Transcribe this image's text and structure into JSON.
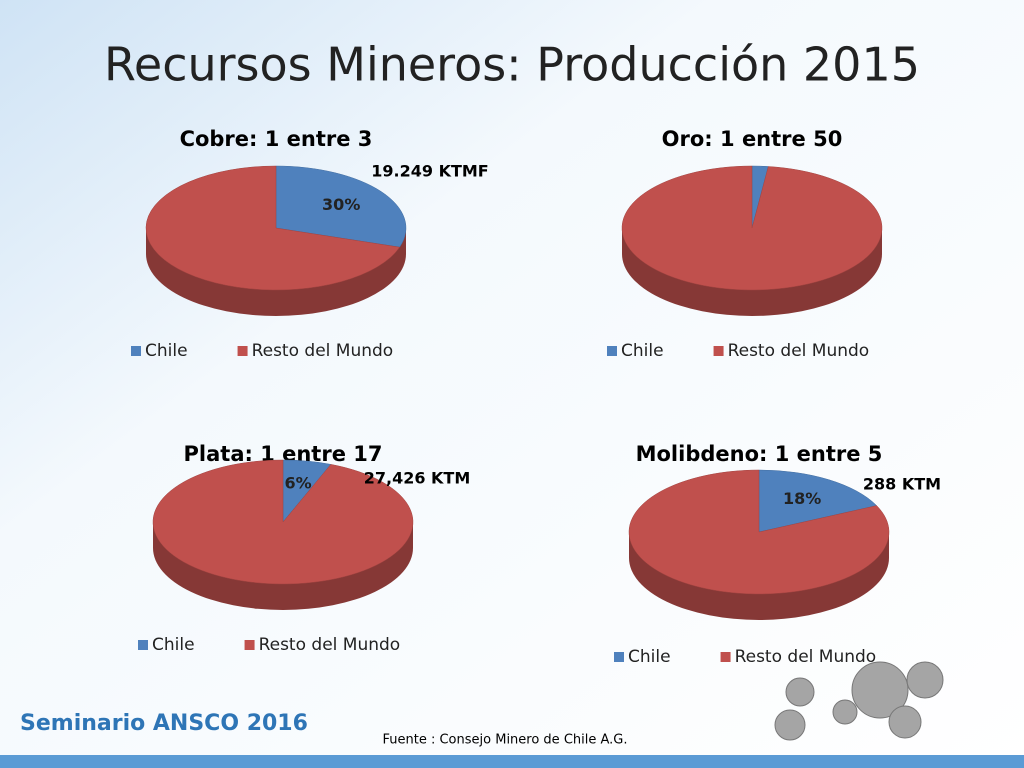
{
  "slide": {
    "title": "Recursos Mineros: Producción 2015",
    "footer": "Seminario ANSCO 2016",
    "source": "Fuente : Consejo Minero  de Chile A.G."
  },
  "chart_data": [
    {
      "type": "pie",
      "title": "Cobre: 1 entre 3",
      "categories": [
        "Chile",
        "Resto del Mundo"
      ],
      "values": [
        30,
        70
      ],
      "value_labels": [
        "30%",
        null
      ],
      "colors": [
        "#4f81bd",
        "#c0504d"
      ],
      "annotation": "19.249 KTMF",
      "legend": "bottom"
    },
    {
      "type": "pie",
      "title": "Oro: 1 entre 50",
      "categories": [
        "Chile",
        "Resto del Mundo"
      ],
      "values": [
        2,
        98
      ],
      "colors": [
        "#4f81bd",
        "#c0504d"
      ],
      "legend": "bottom"
    },
    {
      "type": "pie",
      "title": "Plata: 1 entre 17",
      "categories": [
        "Chile",
        "Resto del Mundo"
      ],
      "values": [
        6,
        94
      ],
      "value_labels": [
        "6%",
        null
      ],
      "colors": [
        "#4f81bd",
        "#c0504d"
      ],
      "annotation": "27,426 KTM",
      "legend": "bottom"
    },
    {
      "type": "pie",
      "title": "Molibdeno: 1 entre 5",
      "categories": [
        "Chile",
        "Resto del Mundo"
      ],
      "values": [
        18,
        82
      ],
      "value_labels": [
        "18%",
        null
      ],
      "colors": [
        "#4f81bd",
        "#c0504d"
      ],
      "annotation": "288 KTM",
      "legend": "bottom"
    }
  ]
}
